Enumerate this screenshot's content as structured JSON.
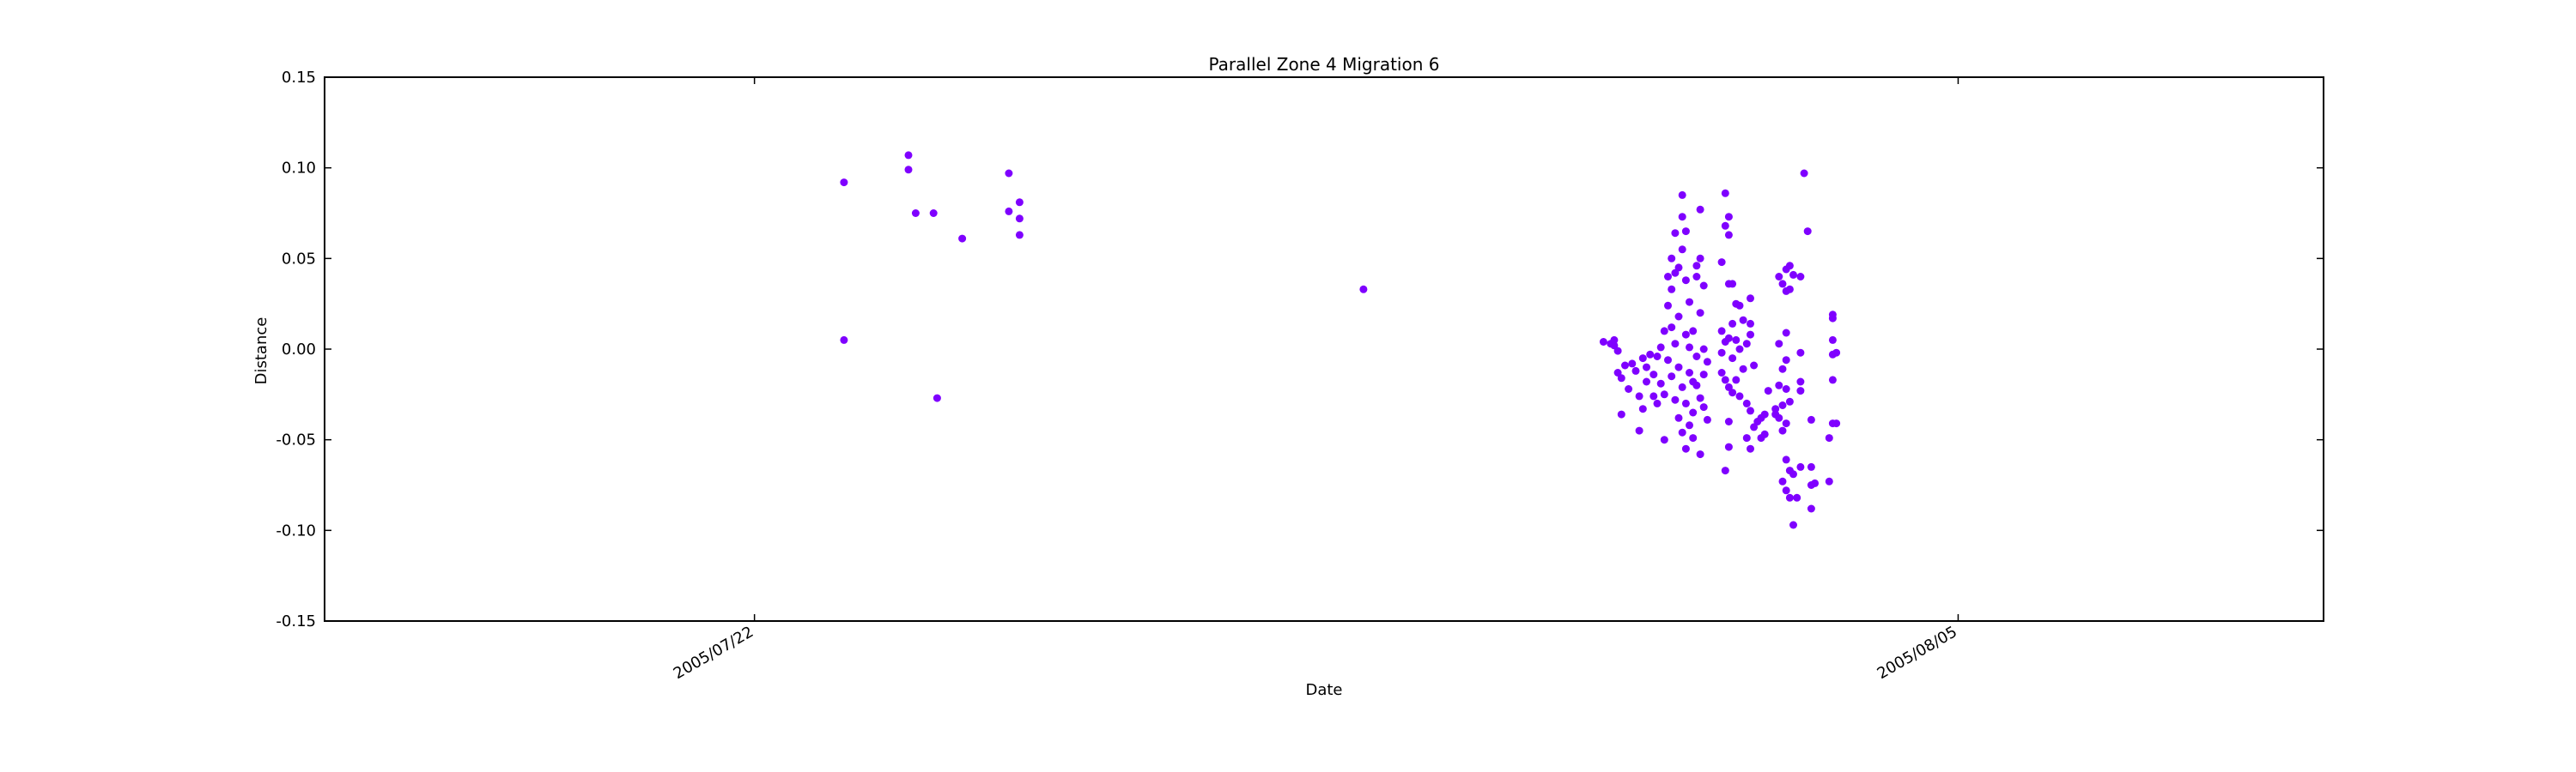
{
  "chart_data": {
    "type": "scatter",
    "title": "Parallel Zone 4 Migration 6",
    "xlabel": "Date",
    "ylabel": "Distance",
    "x_unit": "date",
    "xlim": [
      "2005/07/17 00:00",
      "2005/08/09 06:00"
    ],
    "ylim": [
      -0.15,
      0.15
    ],
    "x_ticks": [
      "2005/07/22",
      "2005/08/05"
    ],
    "y_ticks": [
      "-0.15",
      "-0.10",
      "-0.05",
      "0.00",
      "0.05",
      "0.10",
      "0.15"
    ],
    "grid": false,
    "legend": "none",
    "marker_color": "#7f00ff",
    "series": [
      {
        "points": [
          [
            "2005/07/23 01:00",
            0.092
          ],
          [
            "2005/07/23 01:00",
            0.005
          ],
          [
            "2005/07/23 19:00",
            0.107
          ],
          [
            "2005/07/23 19:00",
            0.099
          ],
          [
            "2005/07/23 21:00",
            0.075
          ],
          [
            "2005/07/24 02:00",
            0.075
          ],
          [
            "2005/07/24 03:00",
            -0.027
          ],
          [
            "2005/07/24 10:00",
            0.061
          ],
          [
            "2005/07/24 23:00",
            0.097
          ],
          [
            "2005/07/24 23:00",
            0.076
          ],
          [
            "2005/07/25 02:00",
            0.081
          ],
          [
            "2005/07/25 02:00",
            0.072
          ],
          [
            "2005/07/25 02:00",
            0.063
          ],
          [
            "2005/07/29 02:00",
            0.033
          ],
          [
            "2005/07/31 21:00",
            0.004
          ],
          [
            "2005/07/31 23:00",
            0.003
          ],
          [
            "2005/08/01 00:00",
            0.005
          ],
          [
            "2005/08/01 00:00",
            0.002
          ],
          [
            "2005/08/01 01:00",
            -0.001
          ],
          [
            "2005/08/01 01:00",
            -0.013
          ],
          [
            "2005/08/01 02:00",
            -0.016
          ],
          [
            "2005/08/01 02:00",
            -0.036
          ],
          [
            "2005/08/01 03:00",
            -0.009
          ],
          [
            "2005/08/01 04:00",
            -0.022
          ],
          [
            "2005/08/01 05:00",
            -0.008
          ],
          [
            "2005/08/01 06:00",
            -0.012
          ],
          [
            "2005/08/01 07:00",
            -0.026
          ],
          [
            "2005/08/01 07:00",
            -0.045
          ],
          [
            "2005/08/01 08:00",
            -0.005
          ],
          [
            "2005/08/01 08:00",
            -0.033
          ],
          [
            "2005/08/01 09:00",
            -0.01
          ],
          [
            "2005/08/01 09:00",
            -0.018
          ],
          [
            "2005/08/01 10:00",
            -0.003
          ],
          [
            "2005/08/01 11:00",
            -0.014
          ],
          [
            "2005/08/01 11:00",
            -0.026
          ],
          [
            "2005/08/01 12:00",
            -0.004
          ],
          [
            "2005/08/01 12:00",
            -0.03
          ],
          [
            "2005/08/01 13:00",
            0.001
          ],
          [
            "2005/08/01 13:00",
            -0.019
          ],
          [
            "2005/08/01 14:00",
            0.01
          ],
          [
            "2005/08/01 14:00",
            -0.025
          ],
          [
            "2005/08/01 14:00",
            -0.05
          ],
          [
            "2005/08/01 15:00",
            0.024
          ],
          [
            "2005/08/01 15:00",
            0.04
          ],
          [
            "2005/08/01 15:00",
            -0.006
          ],
          [
            "2005/08/01 16:00",
            0.05
          ],
          [
            "2005/08/01 16:00",
            0.033
          ],
          [
            "2005/08/01 16:00",
            0.012
          ],
          [
            "2005/08/01 16:00",
            -0.015
          ],
          [
            "2005/08/01 17:00",
            0.064
          ],
          [
            "2005/08/01 17:00",
            0.042
          ],
          [
            "2005/08/01 17:00",
            0.003
          ],
          [
            "2005/08/01 17:00",
            -0.028
          ],
          [
            "2005/08/01 18:00",
            0.045
          ],
          [
            "2005/08/01 18:00",
            0.018
          ],
          [
            "2005/08/01 18:00",
            -0.01
          ],
          [
            "2005/08/01 18:00",
            -0.038
          ],
          [
            "2005/08/01 19:00",
            0.085
          ],
          [
            "2005/08/01 19:00",
            0.073
          ],
          [
            "2005/08/01 19:00",
            0.055
          ],
          [
            "2005/08/01 19:00",
            -0.021
          ],
          [
            "2005/08/01 19:00",
            -0.046
          ],
          [
            "2005/08/01 20:00",
            0.065
          ],
          [
            "2005/08/01 20:00",
            0.038
          ],
          [
            "2005/08/01 20:00",
            0.008
          ],
          [
            "2005/08/01 20:00",
            -0.03
          ],
          [
            "2005/08/01 20:00",
            -0.055
          ],
          [
            "2005/08/01 21:00",
            0.026
          ],
          [
            "2005/08/01 21:00",
            0.001
          ],
          [
            "2005/08/01 21:00",
            -0.013
          ],
          [
            "2005/08/01 21:00",
            -0.042
          ],
          [
            "2005/08/01 22:00",
            0.01
          ],
          [
            "2005/08/01 22:00",
            -0.018
          ],
          [
            "2005/08/01 22:00",
            -0.035
          ],
          [
            "2005/08/01 22:00",
            -0.049
          ],
          [
            "2005/08/01 23:00",
            0.046
          ],
          [
            "2005/08/01 23:00",
            0.04
          ],
          [
            "2005/08/01 23:00",
            -0.004
          ],
          [
            "2005/08/01 23:00",
            -0.02
          ],
          [
            "2005/08/02 00:00",
            0.077
          ],
          [
            "2005/08/02 00:00",
            0.05
          ],
          [
            "2005/08/02 00:00",
            0.02
          ],
          [
            "2005/08/02 00:00",
            -0.027
          ],
          [
            "2005/08/02 00:00",
            -0.058
          ],
          [
            "2005/08/02 01:00",
            0.035
          ],
          [
            "2005/08/02 01:00",
            0.0
          ],
          [
            "2005/08/02 01:00",
            -0.014
          ],
          [
            "2005/08/02 01:00",
            -0.032
          ],
          [
            "2005/08/02 02:00",
            -0.007
          ],
          [
            "2005/08/02 02:00",
            -0.039
          ],
          [
            "2005/08/02 06:00",
            0.048
          ],
          [
            "2005/08/02 06:00",
            0.01
          ],
          [
            "2005/08/02 06:00",
            -0.002
          ],
          [
            "2005/08/02 06:00",
            -0.013
          ],
          [
            "2005/08/02 07:00",
            0.086
          ],
          [
            "2005/08/02 07:00",
            0.068
          ],
          [
            "2005/08/02 07:00",
            0.004
          ],
          [
            "2005/08/02 07:00",
            -0.017
          ],
          [
            "2005/08/02 07:00",
            -0.067
          ],
          [
            "2005/08/02 08:00",
            0.073
          ],
          [
            "2005/08/02 08:00",
            0.063
          ],
          [
            "2005/08/02 08:00",
            0.036
          ],
          [
            "2005/08/02 08:00",
            0.006
          ],
          [
            "2005/08/02 08:00",
            -0.021
          ],
          [
            "2005/08/02 08:00",
            -0.04
          ],
          [
            "2005/08/02 08:00",
            -0.054
          ],
          [
            "2005/08/02 09:00",
            0.036
          ],
          [
            "2005/08/02 09:00",
            0.014
          ],
          [
            "2005/08/02 09:00",
            -0.005
          ],
          [
            "2005/08/02 09:00",
            -0.024
          ],
          [
            "2005/08/02 10:00",
            0.025
          ],
          [
            "2005/08/02 10:00",
            0.005
          ],
          [
            "2005/08/02 10:00",
            -0.017
          ],
          [
            "2005/08/02 11:00",
            0.024
          ],
          [
            "2005/08/02 11:00",
            0.0
          ],
          [
            "2005/08/02 11:00",
            -0.026
          ],
          [
            "2005/08/02 12:00",
            0.016
          ],
          [
            "2005/08/02 12:00",
            -0.011
          ],
          [
            "2005/08/02 13:00",
            0.003
          ],
          [
            "2005/08/02 13:00",
            -0.03
          ],
          [
            "2005/08/02 13:00",
            -0.049
          ],
          [
            "2005/08/02 14:00",
            0.028
          ],
          [
            "2005/08/02 14:00",
            0.014
          ],
          [
            "2005/08/02 14:00",
            0.008
          ],
          [
            "2005/08/02 14:00",
            -0.034
          ],
          [
            "2005/08/02 14:00",
            -0.055
          ],
          [
            "2005/08/02 15:00",
            -0.009
          ],
          [
            "2005/08/02 15:00",
            -0.043
          ],
          [
            "2005/08/02 16:00",
            -0.04
          ],
          [
            "2005/08/02 17:00",
            -0.038
          ],
          [
            "2005/08/02 17:00",
            -0.049
          ],
          [
            "2005/08/02 18:00",
            -0.036
          ],
          [
            "2005/08/02 18:00",
            -0.047
          ],
          [
            "2005/08/02 19:00",
            -0.023
          ],
          [
            "2005/08/02 21:00",
            -0.033
          ],
          [
            "2005/08/02 21:00",
            -0.036
          ],
          [
            "2005/08/02 22:00",
            0.04
          ],
          [
            "2005/08/02 22:00",
            0.003
          ],
          [
            "2005/08/02 22:00",
            -0.02
          ],
          [
            "2005/08/02 22:00",
            -0.038
          ],
          [
            "2005/08/02 23:00",
            0.036
          ],
          [
            "2005/08/02 23:00",
            -0.011
          ],
          [
            "2005/08/02 23:00",
            -0.031
          ],
          [
            "2005/08/02 23:00",
            -0.045
          ],
          [
            "2005/08/02 23:00",
            -0.073
          ],
          [
            "2005/08/03 00:00",
            0.044
          ],
          [
            "2005/08/03 00:00",
            0.032
          ],
          [
            "2005/08/03 00:00",
            0.009
          ],
          [
            "2005/08/03 00:00",
            -0.006
          ],
          [
            "2005/08/03 00:00",
            -0.022
          ],
          [
            "2005/08/03 00:00",
            -0.041
          ],
          [
            "2005/08/03 00:00",
            -0.061
          ],
          [
            "2005/08/03 00:00",
            -0.078
          ],
          [
            "2005/08/03 01:00",
            0.046
          ],
          [
            "2005/08/03 01:00",
            0.033
          ],
          [
            "2005/08/03 01:00",
            -0.029
          ],
          [
            "2005/08/03 01:00",
            -0.067
          ],
          [
            "2005/08/03 01:00",
            -0.082
          ],
          [
            "2005/08/03 02:00",
            0.041
          ],
          [
            "2005/08/03 02:00",
            -0.069
          ],
          [
            "2005/08/03 02:00",
            -0.097
          ],
          [
            "2005/08/03 03:00",
            -0.082
          ],
          [
            "2005/08/03 04:00",
            0.04
          ],
          [
            "2005/08/03 04:00",
            -0.002
          ],
          [
            "2005/08/03 04:00",
            -0.018
          ],
          [
            "2005/08/03 04:00",
            -0.023
          ],
          [
            "2005/08/03 04:00",
            -0.065
          ],
          [
            "2005/08/03 05:00",
            0.097
          ],
          [
            "2005/08/03 06:00",
            0.065
          ],
          [
            "2005/08/03 07:00",
            -0.039
          ],
          [
            "2005/08/03 07:00",
            -0.065
          ],
          [
            "2005/08/03 07:00",
            -0.075
          ],
          [
            "2005/08/03 07:00",
            -0.088
          ],
          [
            "2005/08/03 08:00",
            -0.074
          ],
          [
            "2005/08/03 12:00",
            -0.049
          ],
          [
            "2005/08/03 12:00",
            -0.073
          ],
          [
            "2005/08/03 13:00",
            0.019
          ],
          [
            "2005/08/03 13:00",
            0.017
          ],
          [
            "2005/08/03 13:00",
            0.005
          ],
          [
            "2005/08/03 13:00",
            -0.003
          ],
          [
            "2005/08/03 13:00",
            -0.017
          ],
          [
            "2005/08/03 13:00",
            -0.041
          ],
          [
            "2005/08/03 14:00",
            -0.002
          ],
          [
            "2005/08/03 14:00",
            -0.041
          ]
        ]
      }
    ]
  }
}
